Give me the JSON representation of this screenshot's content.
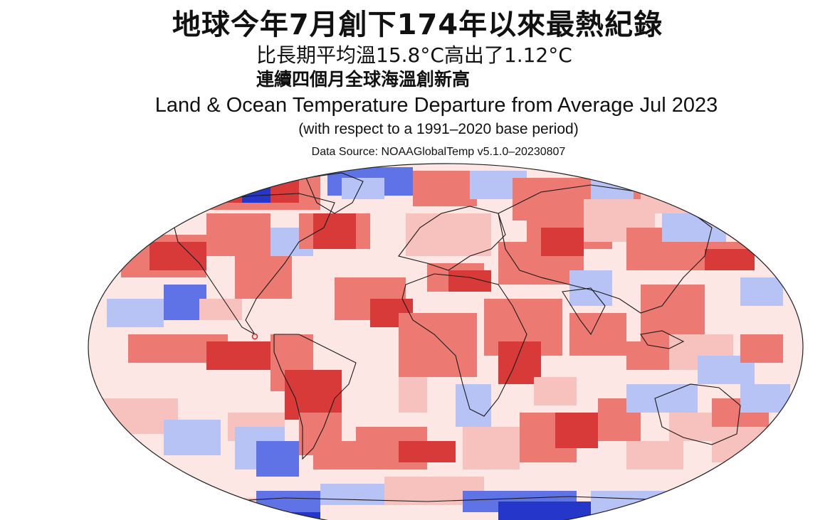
{
  "headline": "地球今年7月創下174年以來最熱紀錄",
  "subheadline_1": "比長期平均溫15.8°C高出了1.12°C",
  "subheadline_2": "連續四個月全球海溫創新高",
  "map": {
    "title": "Land & Ocean Temperature Departure from Average Jul 2023",
    "subtitle": "(with respect to a 1991–2020 base period)",
    "source": "Data Source: NOAAGlobalTemp v5.1.0–20230807",
    "colors": {
      "strong_warm": "#d83a3a",
      "warm": "#ec7a72",
      "mild_warm": "#f7c2bd",
      "neutral": "#fde7e4",
      "cool": "#b7c2f5",
      "strong_cool": "#5f72e6",
      "very_cool": "#2437c8",
      "coastline": "#1a1a1a"
    }
  }
}
